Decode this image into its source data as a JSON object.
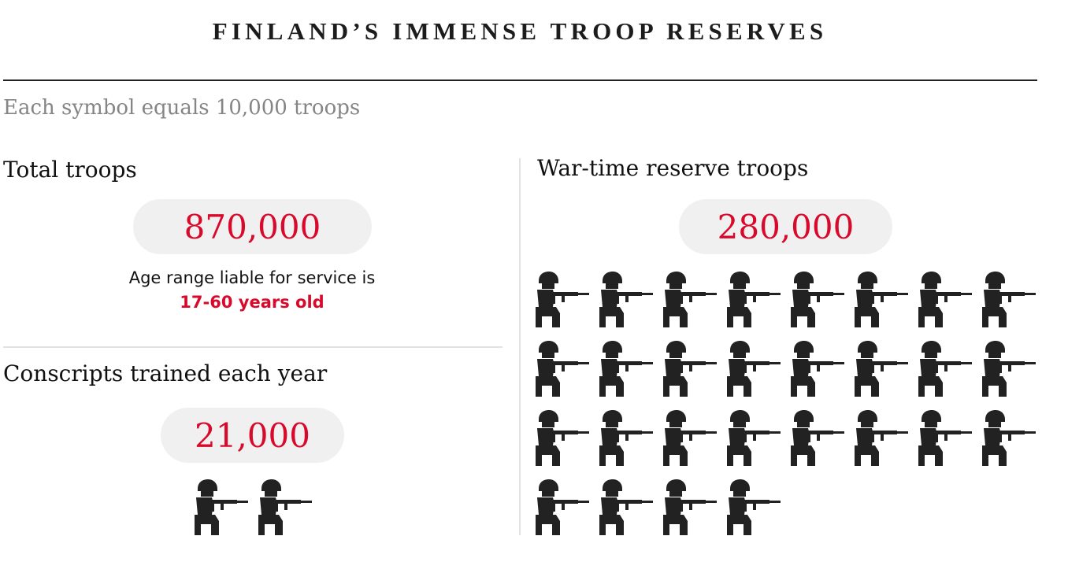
{
  "title": "FINLAND’S IMMENSE TROOP RESERVES",
  "legend": "Each symbol equals 10,000 troops",
  "chart_data": {
    "type": "pictogram",
    "unit_per_symbol": 10000,
    "panels": [
      {
        "heading": "Total troops",
        "value_label": "870,000",
        "value": 870000,
        "note": "Age range liable for service is",
        "note_highlight": "17-60 years old"
      },
      {
        "heading": "Conscripts trained each year",
        "value_label": "21,000",
        "value": 21000,
        "symbols": 2
      },
      {
        "heading": "War-time reserve troops",
        "value_label": "280,000",
        "value": 280000,
        "symbols": 28
      }
    ]
  },
  "colors": {
    "accent": "#d9092b",
    "icon": "#222222",
    "pill": "#f0f0f0",
    "muted": "#858585"
  },
  "icon": "kneeling-soldier-icon"
}
